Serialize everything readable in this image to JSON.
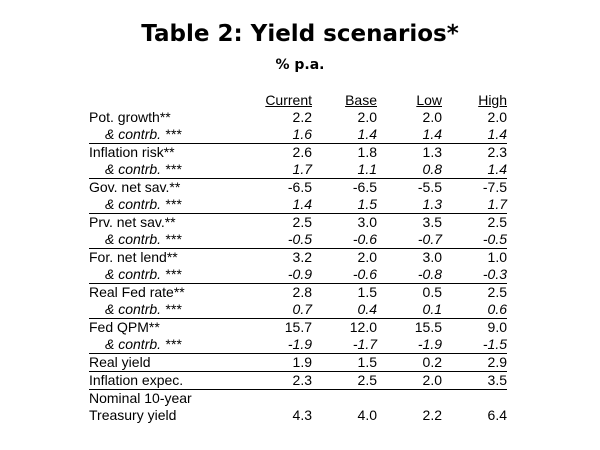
{
  "title": "Table 2: Yield scenarios*",
  "subtitle": "% p.a.",
  "table": {
    "columns": [
      "Current",
      "Base",
      "Low",
      "High"
    ],
    "rows": [
      {
        "label": "Pot. growth**",
        "values": [
          "2.2",
          "2.0",
          "2.0",
          "2.0"
        ]
      },
      {
        "label": "& contrb. ***",
        "values": [
          "1.6",
          "1.4",
          "1.4",
          "1.4"
        ]
      },
      {
        "label": "Inflation risk**",
        "values": [
          "2.6",
          "1.8",
          "1.3",
          "2.3"
        ]
      },
      {
        "label": "& contrb. ***",
        "values": [
          "1.7",
          "1.1",
          "0.8",
          "1.4"
        ]
      },
      {
        "label": "Gov. net sav.**",
        "values": [
          "-6.5",
          "-6.5",
          "-5.5",
          "-7.5"
        ]
      },
      {
        "label": "& contrb. ***",
        "values": [
          "1.4",
          "1.5",
          "1.3",
          "1.7"
        ]
      },
      {
        "label": "Prv. net sav.**",
        "values": [
          "2.5",
          "3.0",
          "3.5",
          "2.5"
        ]
      },
      {
        "label": "& contrb. ***",
        "values": [
          "-0.5",
          "-0.6",
          "-0.7",
          "-0.5"
        ]
      },
      {
        "label": "For. net lend**",
        "values": [
          "3.2",
          "2.0",
          "3.0",
          "1.0"
        ]
      },
      {
        "label": "& contrb. ***",
        "values": [
          "-0.9",
          "-0.6",
          "-0.8",
          "-0.3"
        ]
      },
      {
        "label": "Real Fed rate**",
        "values": [
          "2.8",
          "1.5",
          "0.5",
          "2.5"
        ]
      },
      {
        "label": "& contrb. ***",
        "values": [
          "0.7",
          "0.4",
          "0.1",
          "0.6"
        ]
      },
      {
        "label": "Fed QPM**",
        "values": [
          "15.7",
          "12.0",
          "15.5",
          "9.0"
        ]
      },
      {
        "label": "& contrb. ***",
        "values": [
          "-1.9",
          "-1.7",
          "-1.9",
          "-1.5"
        ]
      },
      {
        "label": "Real yield",
        "values": [
          "1.9",
          "1.5",
          "0.2",
          "2.9"
        ]
      },
      {
        "label": "Inflation expec.",
        "values": [
          "2.3",
          "2.5",
          "2.0",
          "3.5"
        ]
      },
      {
        "label": "Nominal 10-year\nTreasury yield",
        "values": [
          "4.3",
          "4.0",
          "2.2",
          "6.4"
        ]
      }
    ]
  }
}
